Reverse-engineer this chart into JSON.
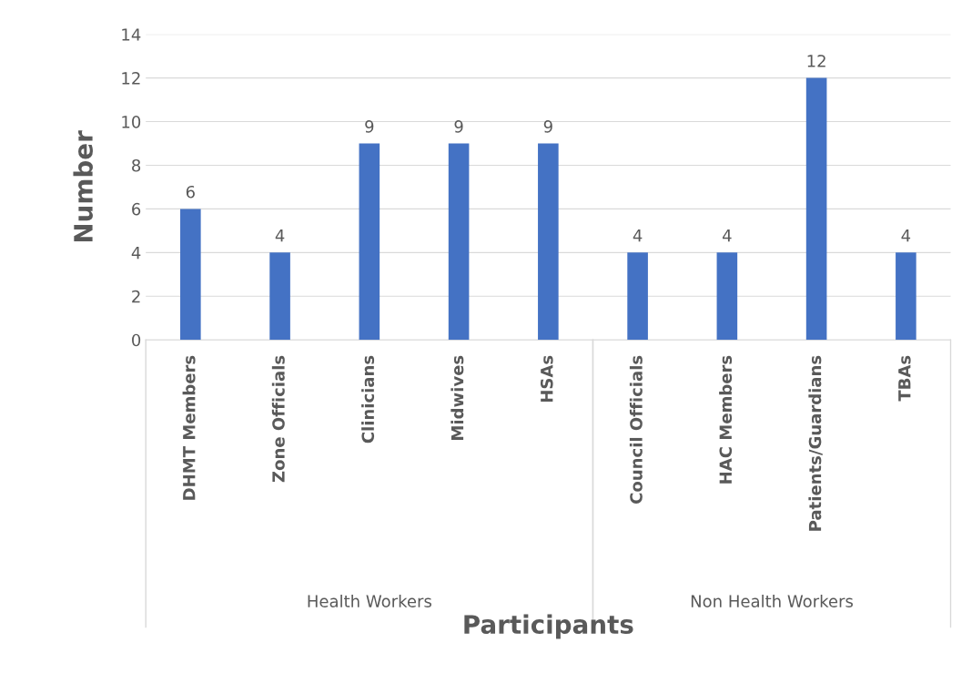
{
  "chart_data": {
    "type": "bar",
    "xlabel": "Participants",
    "ylabel": "Number",
    "categories": [
      "DHMT Members",
      "Zone Officials",
      "Clinicians",
      "Midwives",
      "HSAs",
      "Council Officials",
      "HAC Members",
      "Patients/Guardians",
      "TBAs"
    ],
    "values": [
      6,
      4,
      9,
      9,
      9,
      4,
      4,
      12,
      4
    ],
    "color": "#4472c4",
    "ylim": [
      0,
      14
    ],
    "yticks": [
      0,
      2,
      4,
      6,
      8,
      10,
      12,
      14
    ],
    "grid": "y",
    "data_labels": true,
    "legend": false,
    "annotations": [
      "Health Workers",
      "Non Health Workers"
    ]
  }
}
